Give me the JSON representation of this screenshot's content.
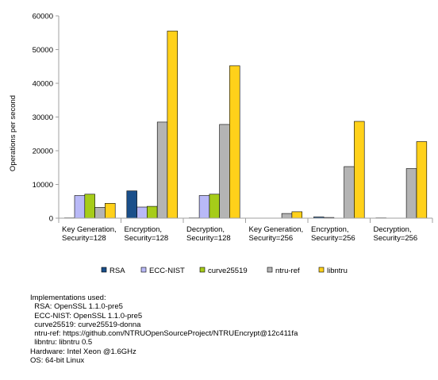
{
  "chart_data": {
    "type": "bar",
    "ylabel": "Operations per second",
    "ylim": [
      0,
      60000
    ],
    "yticks": [
      "0",
      "10000",
      "20000",
      "30000",
      "40000",
      "50000",
      "60000"
    ],
    "grid": false,
    "legend_position": "bottom",
    "categories": [
      [
        "Key Generation,",
        "Security=128"
      ],
      [
        "Encryption,",
        "Security=128"
      ],
      [
        "Decryption,",
        "Security=128"
      ],
      [
        "Key Generation,",
        "Security=256"
      ],
      [
        "Encryption,",
        "Security=256"
      ],
      [
        "Decryption,",
        "Security=256"
      ]
    ],
    "series": [
      {
        "name": "RSA",
        "color": "#1a4f8a",
        "values": [
          100,
          8100,
          100,
          0,
          350,
          100
        ]
      },
      {
        "name": "ECC-NIST",
        "color": "#b9b9f7",
        "values": [
          6700,
          3300,
          6700,
          0,
          200,
          0
        ]
      },
      {
        "name": "curve25519",
        "color": "#a6cc19",
        "values": [
          7100,
          3500,
          7100,
          0,
          0,
          0
        ]
      },
      {
        "name": "ntru-ref",
        "color": "#b4b4b4",
        "values": [
          3200,
          28500,
          27800,
          1400,
          15300,
          14700
        ]
      },
      {
        "name": "libntru",
        "color": "#ffd11a",
        "values": [
          4400,
          55500,
          45200,
          1900,
          28700,
          22700
        ]
      }
    ]
  },
  "notes": {
    "heading": "Implementations used:",
    "rsa": "  RSA: OpenSSL 1.1.0-pre5",
    "ecc": "  ECC-NIST: OpenSSL 1.1.0-pre5",
    "curve": "  curve25519: curve25519-donna",
    "ntru_ref": "  ntru-ref: https://github.com/NTRUOpenSourceProject/NTRUEncrypt@12c411fa",
    "libntru": "  libntru: libntru 0.5",
    "hardware": "Hardware: Intel Xeon @1.6GHz",
    "os": "OS: 64-bit Linux"
  }
}
